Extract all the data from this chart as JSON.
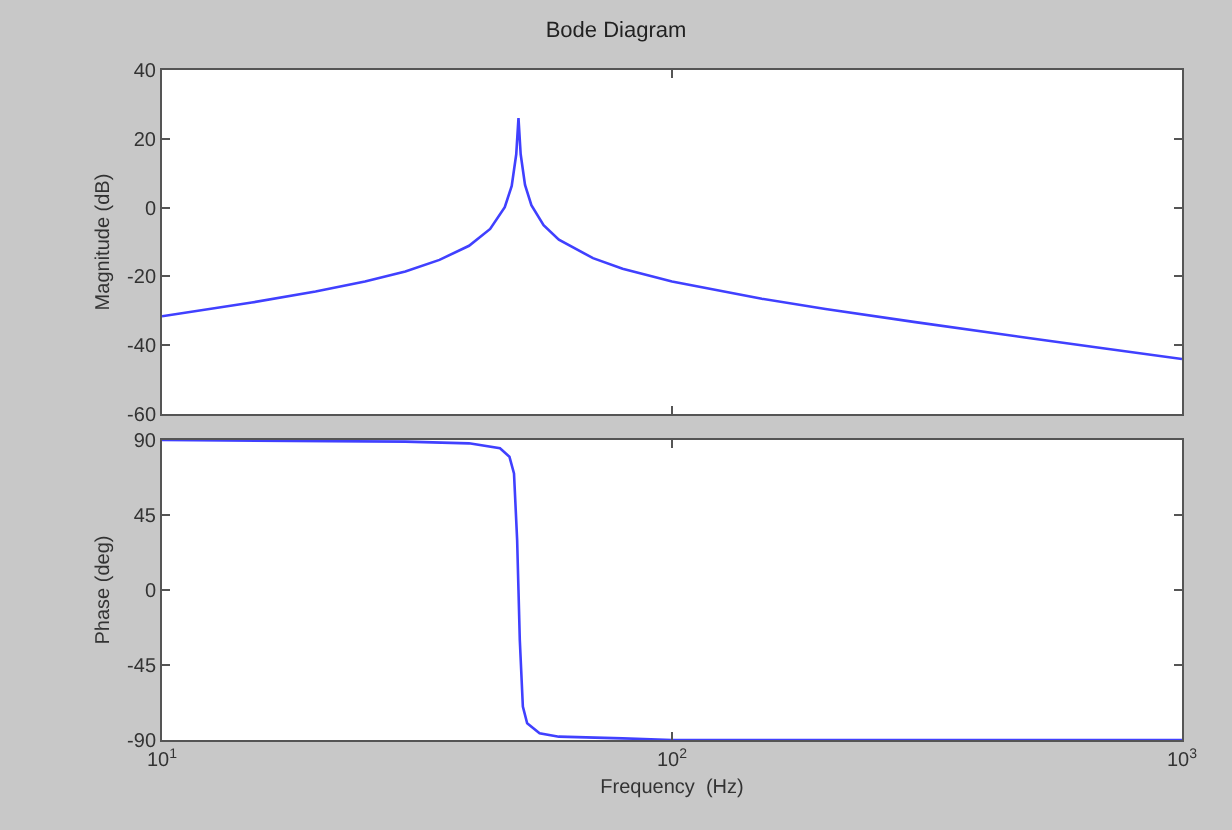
{
  "chart_data": [
    {
      "type": "line",
      "title": "Bode Diagram",
      "ylabel": "Magnitude (dB)",
      "log": "x",
      "x": [
        10,
        15,
        20,
        25,
        30,
        35,
        40,
        44,
        47,
        48.5,
        49.5,
        50,
        50.5,
        51.5,
        53,
        56,
        60,
        70,
        80,
        100,
        150,
        200,
        300,
        500,
        700,
        1000
      ],
      "series": [
        {
          "color": "#4040ff",
          "values": [
            -31.6,
            -27.6,
            -24.4,
            -21.5,
            -18.6,
            -15.2,
            -11.1,
            -6.2,
            0.1,
            6.3,
            15.5,
            26,
            15.5,
            6.6,
            0.7,
            -5.1,
            -9.3,
            -14.7,
            -17.8,
            -21.5,
            -26.5,
            -29.5,
            -33.3,
            -37.9,
            -40.9,
            -44
          ]
        }
      ],
      "xlim": [
        10,
        1000
      ],
      "xticks": [
        {
          "value": 10,
          "label": null
        },
        {
          "value": 100,
          "label": null
        },
        {
          "value": 1000,
          "label": null
        }
      ],
      "ylim": [
        -60,
        40
      ],
      "yticks": [
        -60,
        -40,
        -20,
        0,
        20,
        40
      ],
      "tick_labels": "y"
    },
    {
      "type": "line",
      "xlabel": "Frequency  (Hz)",
      "ylabel": "Phase (deg)",
      "log": "x",
      "x": [
        10,
        30,
        40,
        46,
        48,
        49,
        49.7,
        50,
        50.3,
        51,
        52,
        55,
        60,
        80,
        100,
        1000
      ],
      "series": [
        {
          "color": "#4040ff",
          "values": [
            90,
            89,
            88,
            85,
            80,
            70,
            30,
            0,
            -30,
            -70,
            -80,
            -86,
            -88,
            -89,
            -90,
            -90
          ]
        }
      ],
      "xlim": [
        10,
        1000
      ],
      "xticks": [
        {
          "value": 10,
          "label": "10$^{1}$"
        },
        {
          "value": 100,
          "label": "10$^{2}$"
        },
        {
          "value": 1000,
          "label": "10$^{3}$"
        }
      ],
      "ylim": [
        -90,
        90
      ],
      "yticks": [
        -90,
        -45,
        0,
        45,
        90
      ]
    }
  ]
}
